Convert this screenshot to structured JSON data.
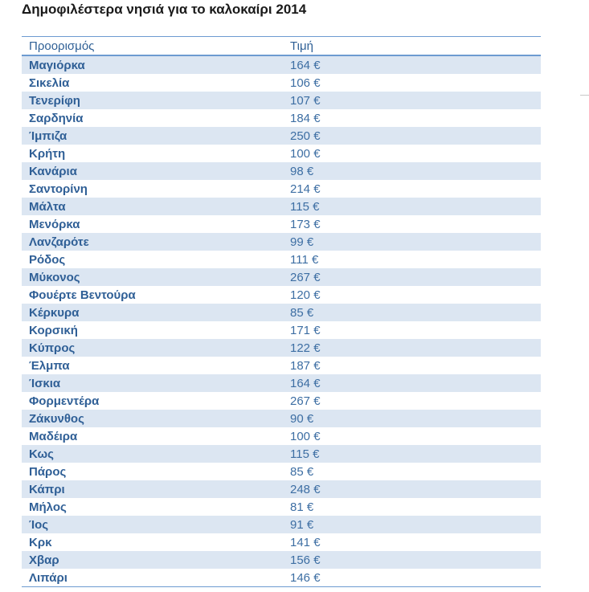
{
  "title": "Δημοφιλέστερα νησιά για το καλοκαίρι 2014",
  "table": {
    "headers": {
      "destination": "Προορισμός",
      "price": "Τιμή"
    },
    "rows": [
      {
        "destination": "Μαγιόρκα",
        "price": "164 €"
      },
      {
        "destination": "Σικελία",
        "price": "106 €"
      },
      {
        "destination": "Τενερίφη",
        "price": "107 €"
      },
      {
        "destination": "Σαρδηνία",
        "price": "184 €"
      },
      {
        "destination": "Ίμπιζα",
        "price": "250 €"
      },
      {
        "destination": "Κρήτη",
        "price": "100 €"
      },
      {
        "destination": "Κανάρια",
        "price": "98 €"
      },
      {
        "destination": "Σαντορίνη",
        "price": "214 €"
      },
      {
        "destination": "Μάλτα",
        "price": "115 €"
      },
      {
        "destination": "Μενόρκα",
        "price": "173 €"
      },
      {
        "destination": "Λανζαρότε",
        "price": "99 €"
      },
      {
        "destination": "Ρόδος",
        "price": "111 €"
      },
      {
        "destination": "Μύκονος",
        "price": "267 €"
      },
      {
        "destination": "Φουέρτε Βεντούρα",
        "price": "120 €"
      },
      {
        "destination": "Κέρκυρα",
        "price": "85 €"
      },
      {
        "destination": "Κορσική",
        "price": "171 €"
      },
      {
        "destination": "Κύπρος",
        "price": "122 €"
      },
      {
        "destination": "Έλμπα",
        "price": "187 €"
      },
      {
        "destination": "Ίσκια",
        "price": "164 €"
      },
      {
        "destination": "Φορμεντέρα",
        "price": "267 €"
      },
      {
        "destination": "Ζάκυνθος",
        "price": "90 €"
      },
      {
        "destination": "Μαδέιρα",
        "price": "100 €"
      },
      {
        "destination": "Κως",
        "price": "115 €"
      },
      {
        "destination": "Πάρος",
        "price": "85 €"
      },
      {
        "destination": "Κάπρι",
        "price": "248 €"
      },
      {
        "destination": "Μήλος",
        "price": "81 €"
      },
      {
        "destination": "Ίος",
        "price": "91 €"
      },
      {
        "destination": "Κρκ",
        "price": "141 €"
      },
      {
        "destination": "Χβαρ",
        "price": "156 €"
      },
      {
        "destination": "Λιπάρι",
        "price": "146 €"
      }
    ]
  },
  "colors": {
    "row_shade": "#dce6f2",
    "rule": "#6d9bd1",
    "text_accent": "#2f5f96"
  }
}
